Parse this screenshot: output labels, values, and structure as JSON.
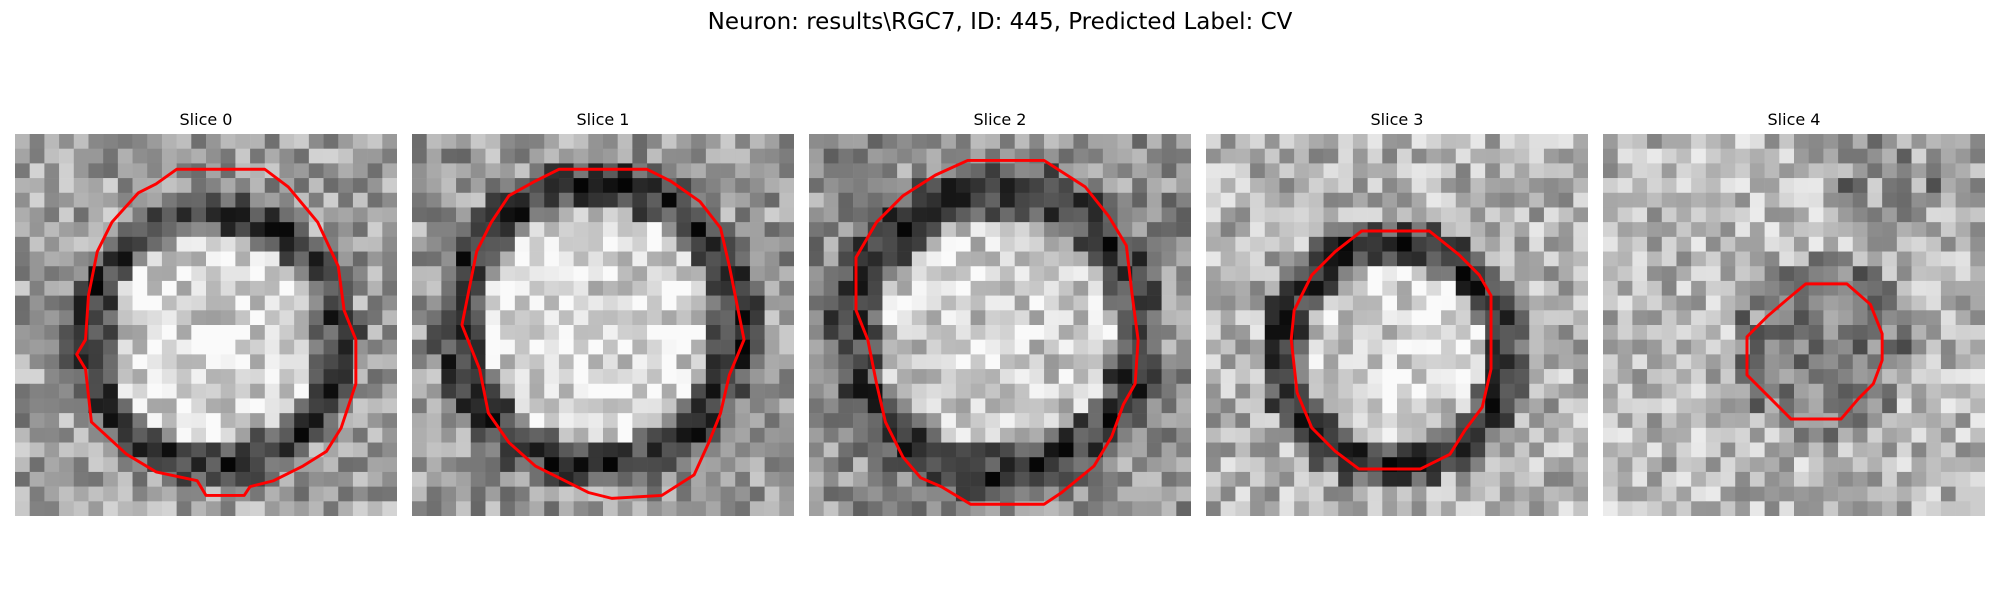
{
  "figure": {
    "title": "Neuron: results\\RGC7, ID: 445, Predicted Label: CV"
  },
  "colors": {
    "contour": "#ff0000",
    "background": "#ffffff"
  },
  "slices": [
    {
      "title": "Slice 0"
    },
    {
      "title": "Slice 1"
    },
    {
      "title": "Slice 2"
    },
    {
      "title": "Slice 3"
    },
    {
      "title": "Slice 4"
    }
  ]
}
